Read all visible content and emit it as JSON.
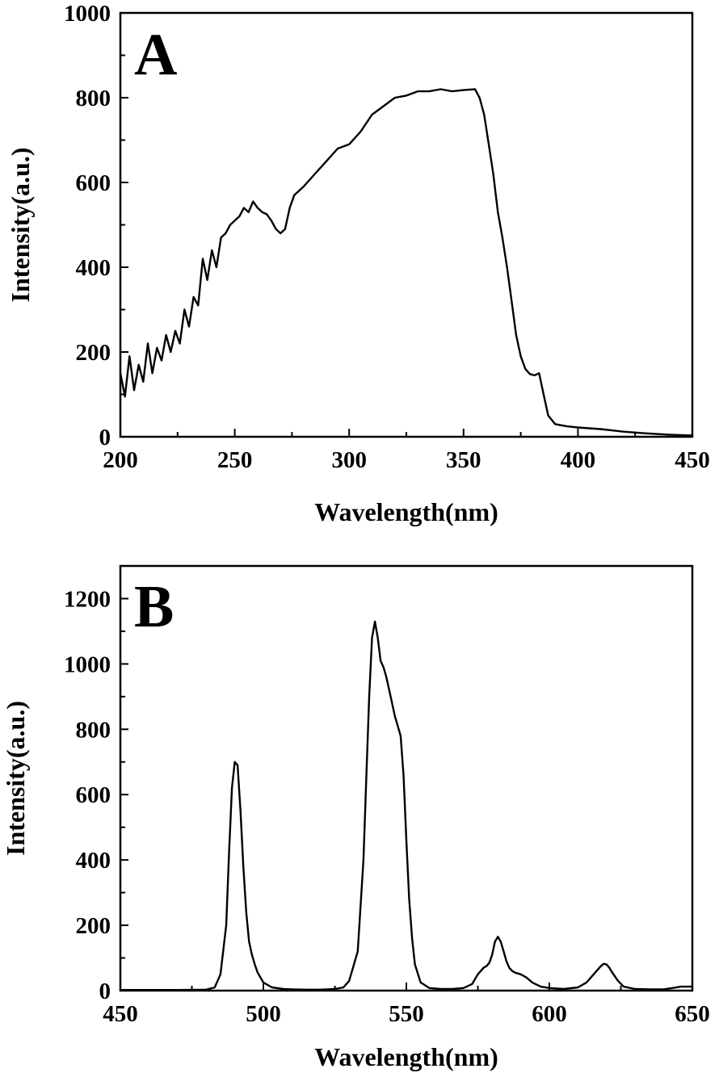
{
  "chart_data": [
    {
      "type": "line",
      "panel_label": "A",
      "xlabel": "Wavelength(nm)",
      "ylabel": "Intensity(a.u.)",
      "xlim": [
        200,
        450
      ],
      "ylim": [
        0,
        1000
      ],
      "xticks": [
        200,
        250,
        300,
        350,
        400,
        450
      ],
      "yticks": [
        0,
        200,
        400,
        600,
        800,
        1000
      ],
      "grid": false,
      "series": [
        {
          "x": [
            200,
            202,
            204,
            206,
            208,
            210,
            212,
            214,
            216,
            218,
            220,
            222,
            224,
            226,
            228,
            230,
            232,
            234,
            236,
            238,
            240,
            242,
            244,
            246,
            248,
            250,
            252,
            254,
            256,
            258,
            260,
            262,
            264,
            266,
            268,
            270,
            272,
            274,
            276,
            278,
            280,
            285,
            290,
            295,
            300,
            305,
            310,
            315,
            320,
            325,
            330,
            335,
            340,
            345,
            350,
            355,
            357,
            359,
            361,
            363,
            365,
            367,
            369,
            371,
            373,
            375,
            377,
            379,
            381,
            383,
            385,
            387,
            390,
            395,
            400,
            410,
            420,
            430,
            440,
            450
          ],
          "y": [
            150,
            95,
            190,
            110,
            170,
            130,
            220,
            150,
            210,
            180,
            240,
            200,
            250,
            220,
            300,
            260,
            330,
            310,
            420,
            370,
            440,
            400,
            470,
            480,
            500,
            510,
            520,
            540,
            530,
            555,
            540,
            530,
            525,
            510,
            490,
            480,
            490,
            540,
            570,
            580,
            590,
            620,
            650,
            680,
            690,
            720,
            760,
            780,
            800,
            805,
            815,
            815,
            820,
            815,
            818,
            820,
            800,
            760,
            690,
            620,
            530,
            470,
            400,
            320,
            240,
            190,
            160,
            148,
            145,
            150,
            100,
            50,
            30,
            25,
            22,
            18,
            12,
            8,
            5,
            3
          ]
        }
      ]
    },
    {
      "type": "line",
      "panel_label": "B",
      "xlabel": "Wavelength(nm)",
      "ylabel": "Intensity(a.u.)",
      "xlim": [
        450,
        650
      ],
      "ylim": [
        0,
        1300
      ],
      "xticks": [
        450,
        500,
        550,
        600,
        650
      ],
      "yticks": [
        0,
        200,
        400,
        600,
        800,
        1000,
        1200
      ],
      "grid": false,
      "series": [
        {
          "x": [
            450,
            470,
            480,
            483,
            485,
            487,
            488,
            489,
            490,
            491,
            492,
            493,
            494,
            495,
            496,
            497,
            498,
            500,
            503,
            507,
            510,
            515,
            520,
            525,
            528,
            530,
            533,
            535,
            536,
            537,
            538,
            539,
            540,
            541,
            542,
            543,
            544,
            545,
            546,
            547,
            548,
            549,
            550,
            551,
            552,
            553,
            555,
            558,
            562,
            566,
            570,
            573,
            575,
            577,
            578,
            579,
            580,
            581,
            582,
            583,
            584,
            585,
            586,
            587,
            588,
            590,
            592,
            594,
            597,
            600,
            605,
            610,
            613,
            615,
            617,
            618,
            619,
            620,
            621,
            622,
            624,
            626,
            630,
            635,
            640,
            643,
            646,
            650
          ],
          "y": [
            2,
            2,
            3,
            10,
            50,
            200,
            420,
            620,
            700,
            690,
            550,
            380,
            240,
            150,
            110,
            80,
            55,
            25,
            10,
            5,
            4,
            3,
            3,
            5,
            10,
            30,
            120,
            400,
            650,
            900,
            1080,
            1130,
            1080,
            1010,
            990,
            960,
            920,
            880,
            840,
            810,
            780,
            660,
            460,
            280,
            160,
            80,
            25,
            8,
            5,
            5,
            8,
            20,
            50,
            70,
            75,
            85,
            110,
            150,
            165,
            150,
            120,
            90,
            70,
            60,
            55,
            50,
            40,
            25,
            12,
            8,
            5,
            10,
            25,
            45,
            65,
            75,
            82,
            80,
            70,
            55,
            30,
            12,
            5,
            4,
            4,
            8,
            12,
            12
          ]
        }
      ]
    }
  ]
}
